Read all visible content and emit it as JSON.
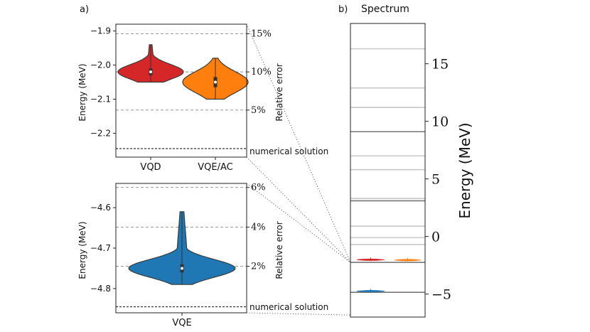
{
  "figure": {
    "panel_a_label": "a)",
    "panel_b_label": "b)",
    "panel_b_title": "Spectrum",
    "numerical_solution_label": "numerical solution",
    "relative_error_label": "Relative error"
  },
  "colors": {
    "vqd": "#d62728",
    "vqe_ac": "#ff7f0e",
    "vqe": "#1f77b4",
    "level_gray": "#c8c8c8",
    "level_dark": "#777777"
  },
  "chart_data": [
    {
      "type": "violin",
      "panel": "a-top",
      "ylabel": "Energy (MeV)",
      "right_label": "Relative error",
      "ylim": [
        -2.27,
        -1.88
      ],
      "yticks": [
        -1.9,
        -2.0,
        -2.1,
        -2.2
      ],
      "ytick_labels": [
        "−1.9",
        "−2.0",
        "−2.1",
        "−2.2"
      ],
      "categories": [
        "VQD",
        "VQE/AC"
      ],
      "series": [
        {
          "name": "VQD",
          "color": "#d62728",
          "median": -2.02,
          "q1": -2.03,
          "q3": -2.01,
          "min": -2.05,
          "max": -1.94
        },
        {
          "name": "VQE/AC",
          "color": "#ff7f0e",
          "median": -2.05,
          "q1": -2.065,
          "q3": -2.035,
          "min": -2.1,
          "max": -1.98
        }
      ],
      "numerical_solution": -2.245,
      "error_lines": [
        {
          "label": "15%",
          "energy": -1.908
        },
        {
          "label": "10%",
          "energy": -2.02
        },
        {
          "label": "5%",
          "energy": -2.132
        }
      ]
    },
    {
      "type": "violin",
      "panel": "a-bottom",
      "ylabel": "Energy (MeV)",
      "right_label": "Relative error",
      "ylim": [
        -4.86,
        -4.54
      ],
      "yticks": [
        -4.6,
        -4.7,
        -4.8
      ],
      "ytick_labels": [
        "−4.6",
        "−4.7",
        "−4.8"
      ],
      "categories": [
        "VQE"
      ],
      "series": [
        {
          "name": "VQE",
          "color": "#1f77b4",
          "median": -4.75,
          "q1": -4.76,
          "q3": -4.74,
          "min": -4.79,
          "max": -4.61
        }
      ],
      "numerical_solution": -4.845,
      "error_lines": [
        {
          "label": "6%",
          "energy": -4.55
        },
        {
          "label": "4%",
          "energy": -4.648
        },
        {
          "label": "2%",
          "energy": -4.745
        }
      ]
    },
    {
      "type": "spectrum",
      "panel": "b",
      "title": "Spectrum",
      "ylabel": "Energy (MeV)",
      "ylim": [
        -7,
        18.5
      ],
      "yticks": [
        -5,
        0,
        5,
        10,
        15
      ],
      "ytick_labels": [
        "−5",
        "0",
        "5",
        "10",
        "15"
      ],
      "levels": [
        16.3,
        12.9,
        11.2,
        9.1,
        7.0,
        5.8,
        3.3,
        3.1,
        0.9,
        -0.1,
        -0.7,
        -2.25,
        -4.85
      ],
      "dark_levels": [
        9.1,
        3.1,
        -2.25,
        -4.85
      ],
      "markers": [
        {
          "name": "VQD",
          "color": "#d62728",
          "energy": -2.02,
          "column": 0
        },
        {
          "name": "VQE/AC",
          "color": "#ff7f0e",
          "energy": -2.05,
          "column": 1
        },
        {
          "name": "VQE",
          "color": "#1f77b4",
          "energy": -4.75,
          "column": 0
        }
      ]
    }
  ]
}
